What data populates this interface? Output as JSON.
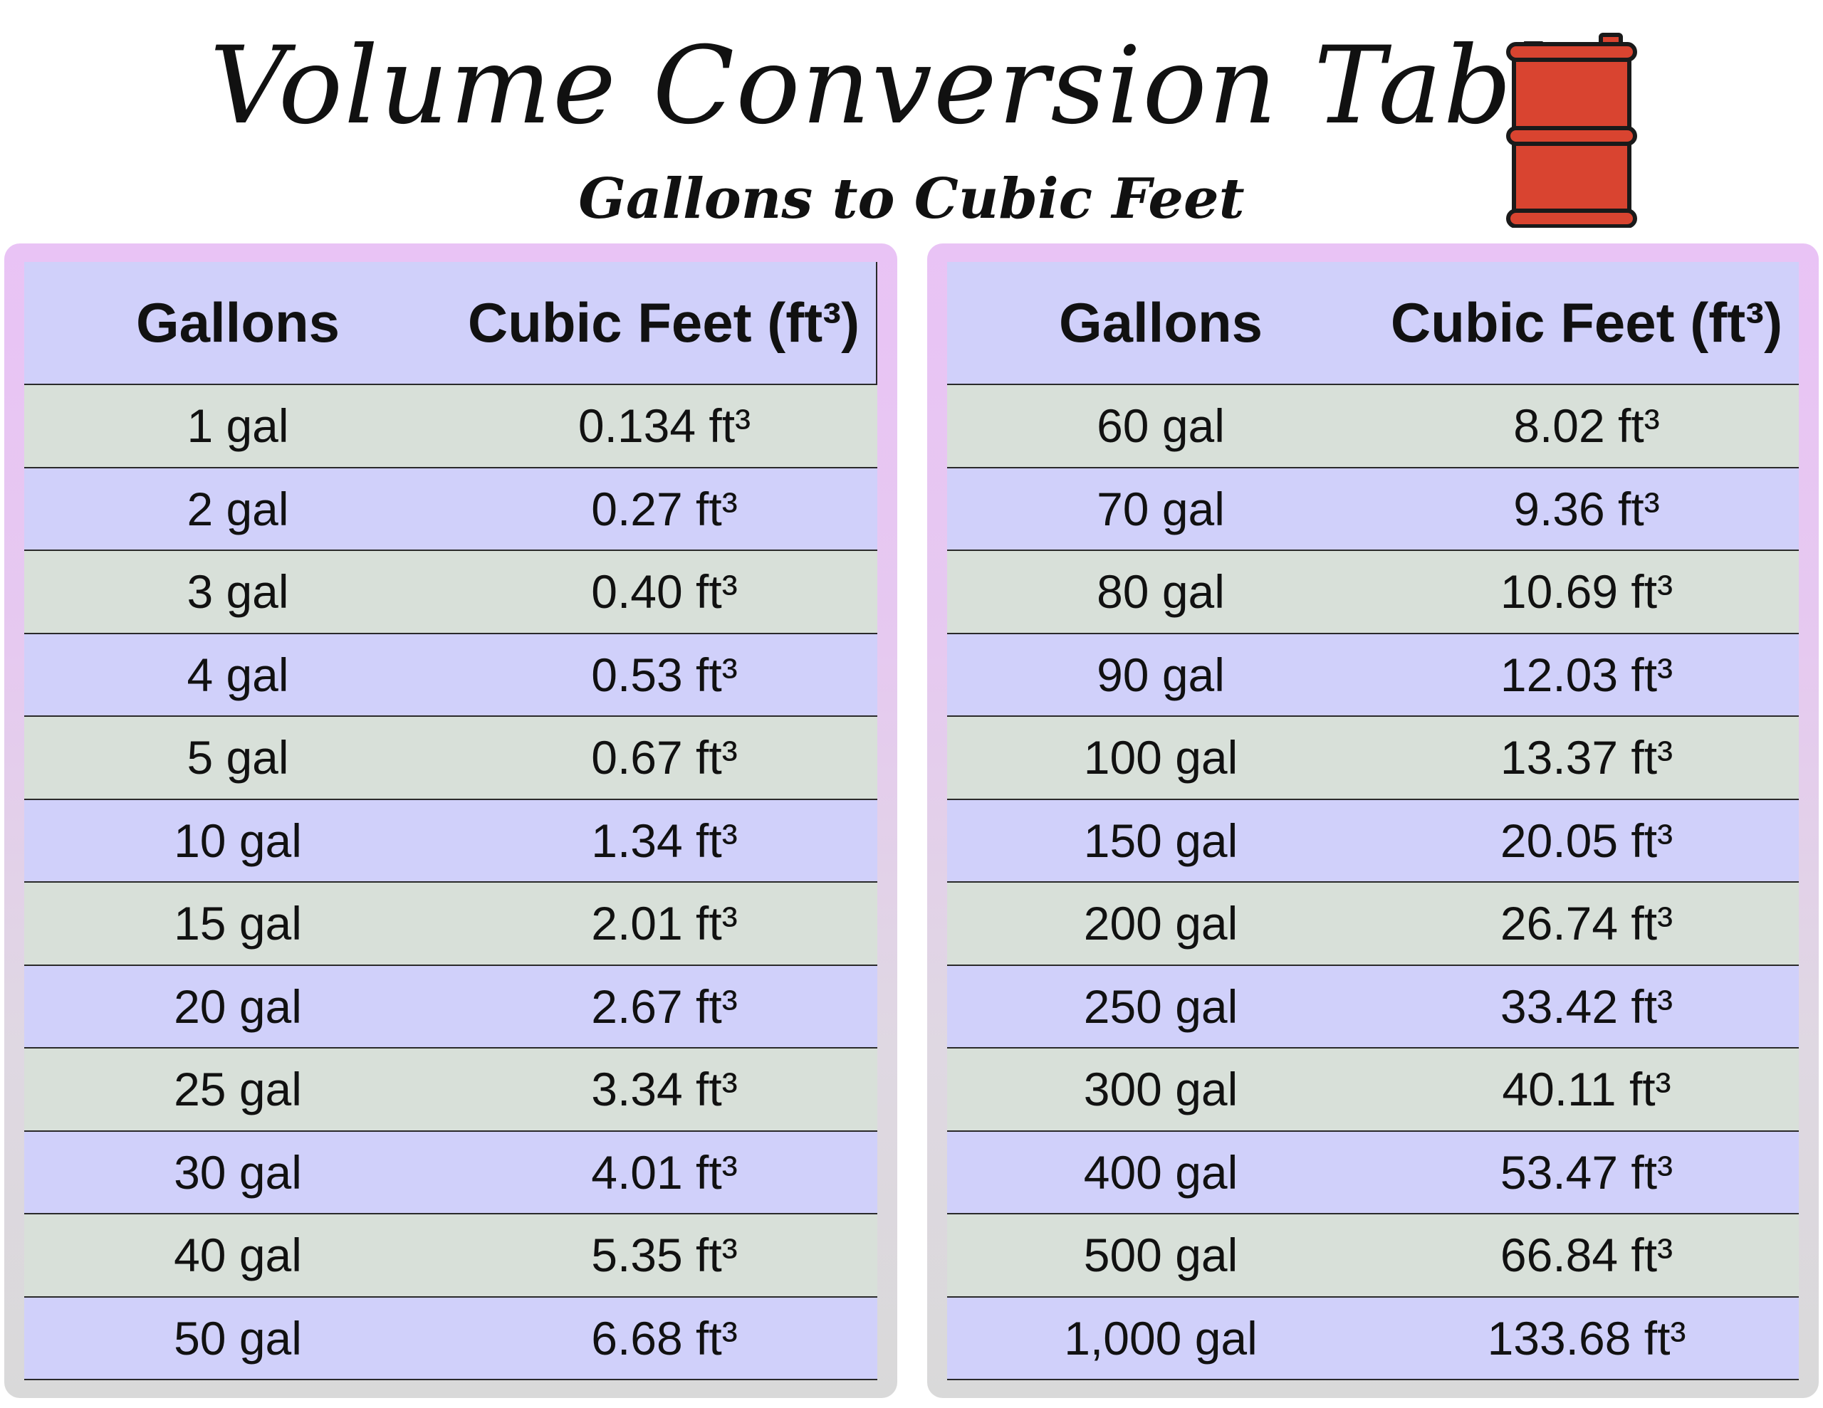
{
  "header": {
    "title": "Volume Conversion Table",
    "subtitle": "Gallons to Cubic Feet",
    "icon": "oil-barrel-icon",
    "barrel_color": "#d94430"
  },
  "colors": {
    "header_row": "#d0d0fa",
    "row_green": "#d8e0d9",
    "row_lavender": "#d0d0fa",
    "panel_top": "#e9c3f5",
    "panel_bottom": "#d9d9d9"
  },
  "tables": [
    {
      "headers": [
        "Gallons",
        "Cubic Feet (ft³)"
      ],
      "rows": [
        [
          "1 gal",
          "0.134 ft³"
        ],
        [
          "2 gal",
          "0.27 ft³"
        ],
        [
          "3 gal",
          "0.40 ft³"
        ],
        [
          "4 gal",
          "0.53 ft³"
        ],
        [
          "5 gal",
          "0.67 ft³"
        ],
        [
          "10 gal",
          "1.34 ft³"
        ],
        [
          "15 gal",
          "2.01 ft³"
        ],
        [
          "20 gal",
          "2.67 ft³"
        ],
        [
          "25 gal",
          "3.34 ft³"
        ],
        [
          "30 gal",
          "4.01 ft³"
        ],
        [
          "40 gal",
          "5.35 ft³"
        ],
        [
          "50 gal",
          "6.68 ft³"
        ]
      ]
    },
    {
      "headers": [
        "Gallons",
        "Cubic Feet (ft³)"
      ],
      "rows": [
        [
          "60 gal",
          "8.02 ft³"
        ],
        [
          "70 gal",
          "9.36 ft³"
        ],
        [
          "80 gal",
          "10.69 ft³"
        ],
        [
          "90 gal",
          "12.03 ft³"
        ],
        [
          "100 gal",
          "13.37 ft³"
        ],
        [
          "150 gal",
          "20.05 ft³"
        ],
        [
          "200 gal",
          "26.74 ft³"
        ],
        [
          "250 gal",
          "33.42 ft³"
        ],
        [
          "300 gal",
          "40.11 ft³"
        ],
        [
          "400 gal",
          "53.47 ft³"
        ],
        [
          "500 gal",
          "66.84 ft³"
        ],
        [
          "1,000 gal",
          "133.68 ft³"
        ]
      ]
    }
  ]
}
